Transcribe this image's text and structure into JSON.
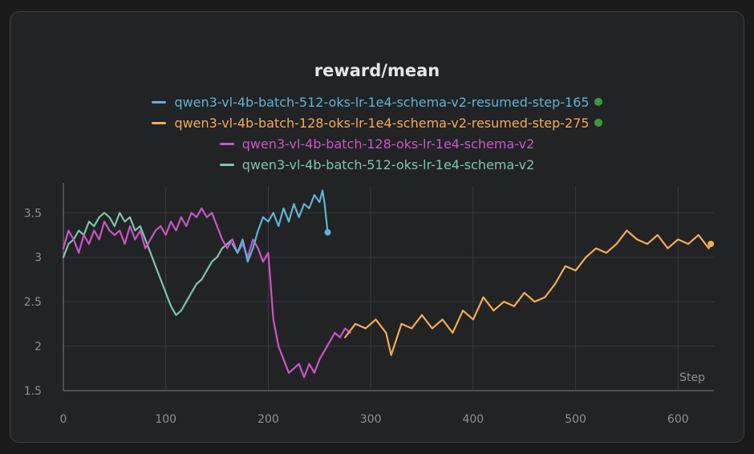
{
  "chart_data": {
    "type": "line",
    "title": "reward/mean",
    "xlabel": "Step",
    "ylabel": "",
    "xlim": [
      0,
      635
    ],
    "ylim": [
      1.5,
      3.8
    ],
    "xticks": [
      0,
      100,
      200,
      300,
      400,
      500,
      600
    ],
    "yticks": [
      1.5,
      2,
      2.5,
      3,
      3.5
    ],
    "ytick_labels": [
      "1.5",
      "2",
      "2.5",
      "3",
      "3.5"
    ],
    "grid": true,
    "legend_position": "top-center",
    "series": [
      {
        "name": "qwen3-vl-4b-batch-512-oks-lr-1e4-schema-v2-resumed-step-165",
        "color": "#5fb3d6",
        "legend_dot_color": "#3a9a3a",
        "end_marker": true,
        "x": [
          165,
          170,
          175,
          180,
          185,
          190,
          195,
          200,
          205,
          210,
          215,
          220,
          225,
          230,
          235,
          240,
          245,
          250,
          253,
          255,
          258
        ],
        "y": [
          3.15,
          3.05,
          3.2,
          2.95,
          3.1,
          3.3,
          3.45,
          3.4,
          3.5,
          3.35,
          3.55,
          3.4,
          3.6,
          3.45,
          3.6,
          3.55,
          3.7,
          3.62,
          3.75,
          3.6,
          3.28
        ]
      },
      {
        "name": "qwen3-vl-4b-batch-128-oks-lr-1e4-schema-v2-resumed-step-275",
        "color": "#f2ac57",
        "legend_dot_color": "#3a9a3a",
        "end_marker": true,
        "x": [
          275,
          285,
          295,
          305,
          315,
          320,
          330,
          340,
          350,
          360,
          370,
          380,
          390,
          400,
          410,
          420,
          430,
          440,
          450,
          460,
          470,
          480,
          490,
          500,
          510,
          520,
          530,
          540,
          550,
          560,
          570,
          580,
          590,
          600,
          610,
          620,
          630,
          632
        ],
        "y": [
          2.1,
          2.25,
          2.2,
          2.3,
          2.15,
          1.9,
          2.25,
          2.2,
          2.35,
          2.2,
          2.3,
          2.15,
          2.4,
          2.3,
          2.55,
          2.4,
          2.5,
          2.45,
          2.6,
          2.5,
          2.55,
          2.7,
          2.9,
          2.85,
          3.0,
          3.1,
          3.05,
          3.15,
          3.3,
          3.2,
          3.15,
          3.25,
          3.1,
          3.2,
          3.15,
          3.25,
          3.1,
          3.15
        ]
      },
      {
        "name": "qwen3-vl-4b-batch-128-oks-lr-1e4-schema-v2",
        "color": "#c956c9",
        "legend_dot_color": "",
        "end_marker": false,
        "x": [
          0,
          5,
          10,
          15,
          20,
          25,
          30,
          35,
          40,
          45,
          50,
          55,
          60,
          65,
          70,
          75,
          80,
          85,
          90,
          95,
          100,
          105,
          110,
          115,
          120,
          125,
          130,
          135,
          140,
          145,
          150,
          155,
          160,
          165,
          170,
          175,
          180,
          185,
          190,
          195,
          200,
          205,
          210,
          215,
          220,
          225,
          230,
          235,
          240,
          245,
          250,
          255,
          260,
          265,
          270,
          275,
          280
        ],
        "y": [
          3.1,
          3.3,
          3.2,
          3.05,
          3.25,
          3.15,
          3.3,
          3.2,
          3.4,
          3.3,
          3.25,
          3.3,
          3.15,
          3.35,
          3.2,
          3.3,
          3.1,
          3.2,
          3.3,
          3.35,
          3.25,
          3.4,
          3.3,
          3.45,
          3.35,
          3.5,
          3.45,
          3.55,
          3.45,
          3.5,
          3.35,
          3.2,
          3.1,
          3.2,
          3.05,
          3.15,
          3.0,
          3.2,
          3.1,
          2.95,
          3.05,
          2.3,
          2.0,
          1.85,
          1.7,
          1.75,
          1.8,
          1.65,
          1.8,
          1.7,
          1.85,
          1.95,
          2.05,
          2.15,
          2.1,
          2.2,
          2.15
        ]
      },
      {
        "name": "qwen3-vl-4b-batch-512-oks-lr-1e4-schema-v2",
        "color": "#7fc4b0",
        "legend_dot_color": "",
        "end_marker": false,
        "x": [
          0,
          5,
          10,
          15,
          20,
          25,
          30,
          35,
          40,
          45,
          50,
          55,
          60,
          65,
          70,
          75,
          80,
          85,
          90,
          95,
          100,
          105,
          110,
          115,
          120,
          125,
          130,
          135,
          140,
          145,
          150,
          155,
          160,
          165
        ],
        "y": [
          3.0,
          3.15,
          3.2,
          3.3,
          3.25,
          3.4,
          3.35,
          3.45,
          3.5,
          3.45,
          3.35,
          3.5,
          3.4,
          3.45,
          3.3,
          3.35,
          3.2,
          3.05,
          2.9,
          2.75,
          2.6,
          2.45,
          2.35,
          2.4,
          2.5,
          2.6,
          2.7,
          2.75,
          2.85,
          2.95,
          3.0,
          3.1,
          3.15,
          3.2
        ]
      }
    ]
  }
}
